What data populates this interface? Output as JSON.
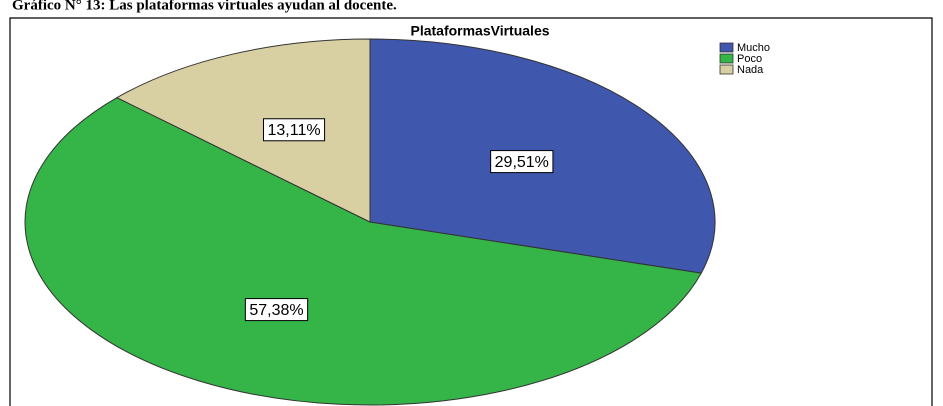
{
  "caption": "Gráfico N° 13: Las plataformas virtuales ayudan al docente.",
  "chart_data": {
    "type": "pie",
    "title": "PlataformasVirtuales",
    "categories": [
      "Mucho",
      "Poco",
      "Nada"
    ],
    "values": [
      29.51,
      57.38,
      13.11
    ],
    "value_labels": [
      "29,51%",
      "57,38%",
      "13,11%"
    ],
    "colors": [
      "#3f58ae",
      "#35b448",
      "#d8cfa2"
    ],
    "legend": "top-right"
  }
}
